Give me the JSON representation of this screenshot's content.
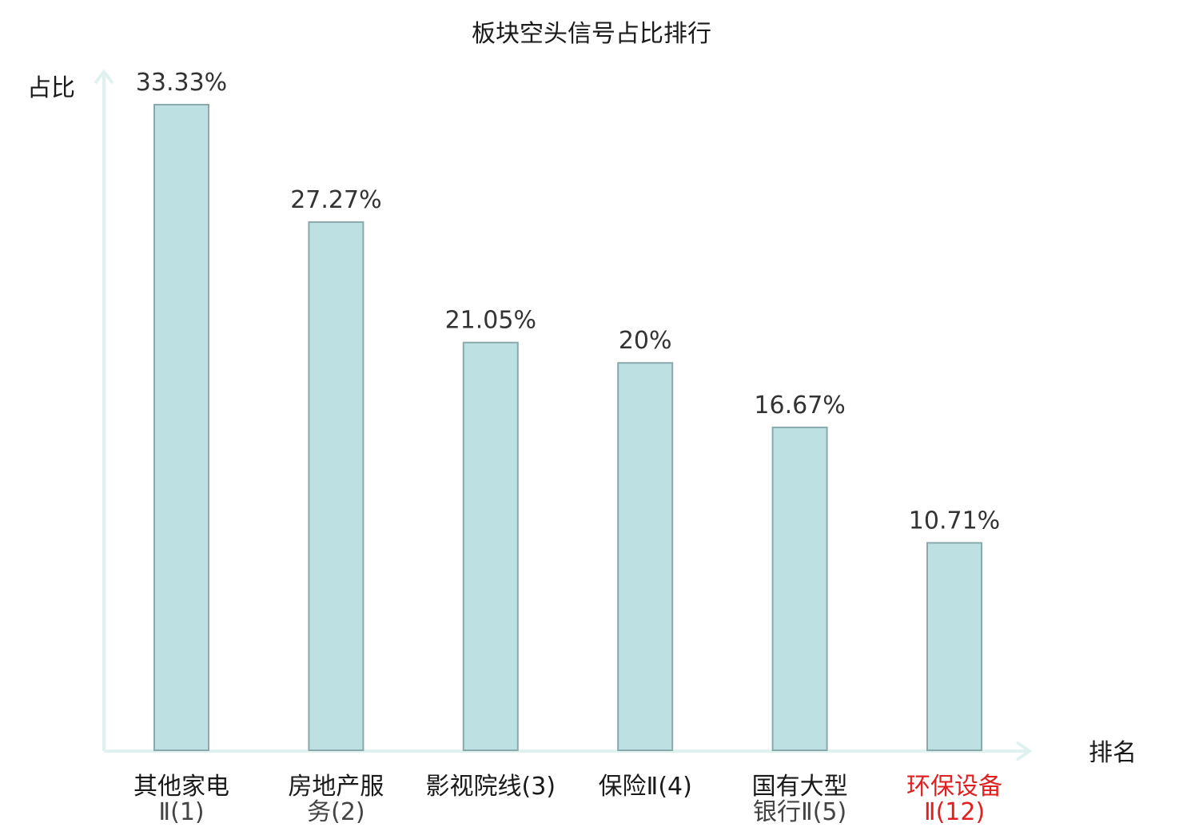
{
  "chart_data": {
    "type": "bar",
    "title": "板块空头信号占比排行",
    "xlabel": "排名",
    "ylabel": "占比",
    "ylim": [
      0,
      35
    ],
    "grid": false,
    "categories": [
      {
        "line1": "其他家电",
        "line2": "Ⅱ(1)",
        "highlight": false
      },
      {
        "line1": "房地产服",
        "line2": "务(2)",
        "highlight": false
      },
      {
        "line1": "影视院线(3)",
        "line2": "",
        "highlight": false
      },
      {
        "line1": "保险Ⅱ(4)",
        "line2": "",
        "highlight": false
      },
      {
        "line1": "国有大型",
        "line2": "银行Ⅱ(5)",
        "highlight": false
      },
      {
        "line1": "环保设备",
        "line2": "Ⅱ(12)",
        "highlight": true
      }
    ],
    "values": [
      33.33,
      27.27,
      21.05,
      20,
      16.67,
      10.71
    ],
    "value_labels": [
      "33.33%",
      "27.27%",
      "21.05%",
      "20%",
      "16.67%",
      "10.71%"
    ],
    "colors": {
      "bar_fill": "#bde0e3",
      "bar_stroke": "#8aa9ac",
      "axis": "#e0f2f0",
      "highlight_text": "#e02020",
      "text": "#1a1a1a"
    }
  }
}
